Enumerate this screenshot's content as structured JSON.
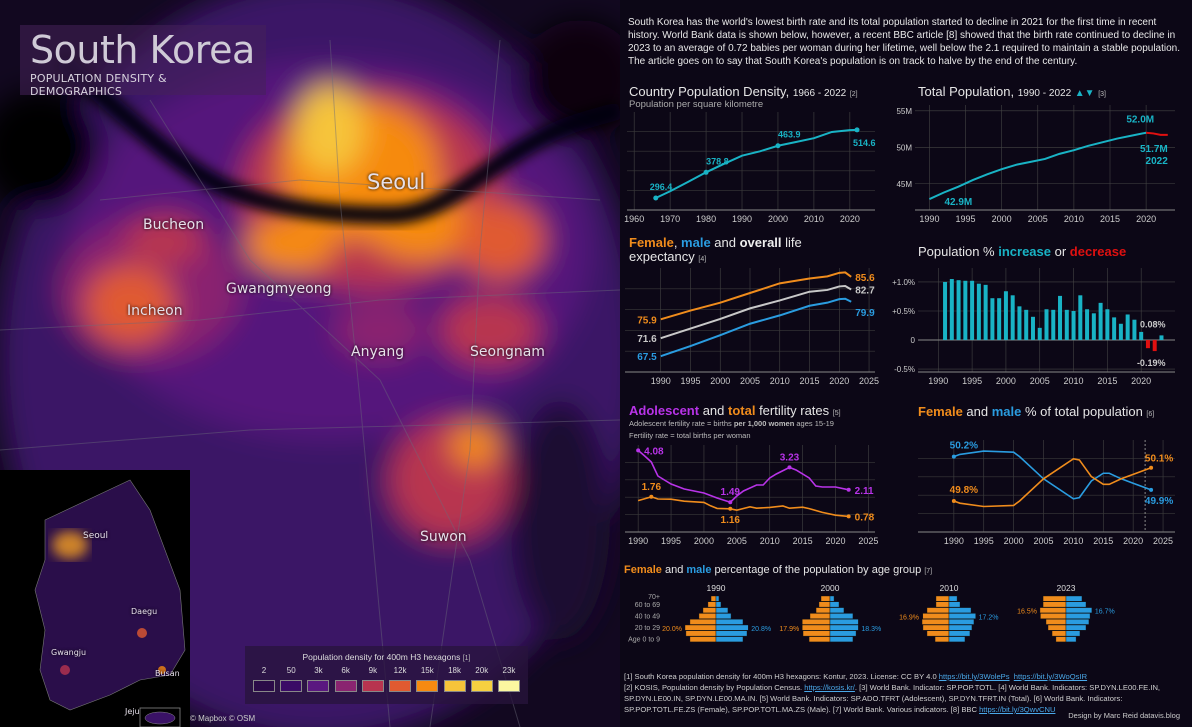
{
  "header": {
    "title": "South Korea",
    "subtitle": "POPULATION DENSITY  &  DEMOGRAPHICS"
  },
  "intro": "South Korea has the world's lowest birth rate and its total population started to decline in 2021 for the first time in recent history. World Bank data is shown below, however, a recent BBC article [8] showed that the birth rate continued to decline in 2023 to an average of 0.72 babies per woman during her lifetime, well below the 2.1 required to maintain a stable population. The article goes on to say that South Korea's population is on track to halve by the end of the century.",
  "map": {
    "cities": [
      "Seoul",
      "Bucheon",
      "Incheon",
      "Gwangmyeong",
      "Anyang",
      "Seongnam",
      "Suwon"
    ],
    "inset_cities": [
      "Seoul",
      "Daegu",
      "Gwangju",
      "Busan",
      "Jeju"
    ],
    "attribution": "© Mapbox © OSM",
    "legend": {
      "title": "Population density for 400m H3 hexagons",
      "ref": "[1]",
      "items": [
        {
          "label": "2",
          "color": "#2b0b48"
        },
        {
          "label": "50",
          "color": "#3a0b66"
        },
        {
          "label": "3k",
          "color": "#5a1880"
        },
        {
          "label": "6k",
          "color": "#8a2470"
        },
        {
          "label": "9k",
          "color": "#b8344f"
        },
        {
          "label": "12k",
          "color": "#e05a30"
        },
        {
          "label": "15k",
          "color": "#f68a10"
        },
        {
          "label": "18k",
          "color": "#f6c43a"
        },
        {
          "label": "20k",
          "color": "#f6d040"
        },
        {
          "label": "23k",
          "color": "#fbf7a0"
        }
      ]
    }
  },
  "colors": {
    "female": "#f08c1c",
    "male": "#2a9ce0",
    "overall": "#c8c8c8",
    "increase": "#19b3c5",
    "decrease": "#e01010",
    "adolescent": "#b833e8",
    "total": "#f08c1c",
    "line": "#19b3c5"
  },
  "chart_titles": {
    "density": {
      "title": "Country Population Density,",
      "years": "1966 - 2022",
      "ref": "[2]",
      "subtitle": "Population per square kilometre"
    },
    "population": {
      "title": "Total Population,",
      "years": "1990 - 2022",
      "arrows": "▲▼",
      "ref": "[3]"
    },
    "life": {
      "female": "Female",
      "sep1": ", ",
      "male": "male",
      "sep2": " and ",
      "overall": "overall",
      "rest": " life expectancy",
      "ref": "[4]"
    },
    "growth": {
      "pre": "Population % ",
      "increase": "increase",
      "mid": " or ",
      "decrease": "decrease"
    },
    "fertility": {
      "adolescent": "Adolescent",
      "mid": " and ",
      "total": "total",
      "rest": " fertility rates",
      "ref": "[5]",
      "note1_pre": "Adolescent fertility rate = births ",
      "note1_bold": "per 1,000 women",
      "note1_post": " ages 15-19",
      "note2": "Fertility rate = total births per woman"
    },
    "sex": {
      "female": "Female",
      "mid": " and ",
      "male": "male",
      "rest": " % of total population",
      "ref": "[6]"
    },
    "pyramid": {
      "female": "Female",
      "mid": " and ",
      "male": "male",
      "rest": " percentage of the population by age group",
      "ref": "[7]"
    }
  },
  "chart_data": [
    {
      "id": "density",
      "type": "line",
      "ylim": [
        258,
        572
      ],
      "xlim": [
        1958,
        2027
      ],
      "xticks": [
        1960,
        1970,
        1980,
        1990,
        2000,
        2010,
        2020
      ],
      "x": [
        1966,
        1970,
        1975,
        1980,
        1985,
        1990,
        1995,
        2000,
        2005,
        2010,
        2015,
        2020,
        2022
      ],
      "values": [
        296.4,
        318,
        348,
        378.8,
        406,
        432,
        446,
        463.9,
        476,
        488,
        508,
        514,
        514.6
      ],
      "labels": [
        {
          "x": 1966,
          "text": "296.4"
        },
        {
          "x": 1980,
          "text": "378.8"
        },
        {
          "x": 2000,
          "text": "463.9"
        },
        {
          "x": 2022,
          "text": "514.6"
        }
      ]
    },
    {
      "id": "population",
      "type": "line",
      "ylim": [
        41.4,
        55.8
      ],
      "xlim": [
        1988,
        2024
      ],
      "xticks": [
        1990,
        1995,
        2000,
        2005,
        2010,
        2015,
        2020
      ],
      "yticks": [
        {
          "v": 45,
          "label": "45M"
        },
        {
          "v": 50,
          "label": "50M"
        },
        {
          "v": 55,
          "label": "55M"
        }
      ],
      "x": [
        1990,
        1992,
        1994,
        1996,
        1998,
        2000,
        2002,
        2004,
        2006,
        2008,
        2010,
        2012,
        2014,
        2016,
        2018,
        2020,
        2021,
        2022,
        2023
      ],
      "values": [
        42.9,
        43.8,
        44.6,
        45.5,
        46.3,
        47.0,
        47.6,
        48.0,
        48.4,
        49.1,
        49.6,
        50.2,
        50.7,
        51.2,
        51.6,
        52.0,
        51.9,
        51.7,
        51.7
      ],
      "labels": [
        "42.9M",
        "52.0M",
        "51.7M",
        "2022"
      ]
    },
    {
      "id": "life",
      "type": "line",
      "ylim": [
        63.9,
        87.6
      ],
      "xlim": [
        1984,
        2026
      ],
      "xticks": [
        1990,
        1995,
        2000,
        2005,
        2010,
        2015,
        2020,
        2025
      ],
      "x": [
        1990,
        1995,
        2000,
        2005,
        2010,
        2015,
        2018,
        2020,
        2021,
        2022
      ],
      "series": [
        {
          "name": "Female",
          "values": [
            75.9,
            77.9,
            79.7,
            81.9,
            84.1,
            85.2,
            85.7,
            86.5,
            86.6,
            85.6
          ],
          "label_start": "75.9",
          "label_end": "85.6"
        },
        {
          "name": "Overall",
          "values": [
            71.6,
            73.8,
            76.0,
            78.4,
            80.2,
            82.2,
            82.6,
            83.4,
            83.5,
            82.7
          ],
          "label_start": "71.6",
          "label_end": "82.7"
        },
        {
          "name": "Male",
          "values": [
            67.5,
            69.8,
            72.3,
            74.9,
            76.8,
            79.0,
            79.7,
            80.5,
            80.6,
            79.9
          ],
          "label_start": "67.5",
          "label_end": "79.9"
        }
      ]
    },
    {
      "id": "growth",
      "type": "bar",
      "ylim": [
        -0.55,
        1.24
      ],
      "xlim": [
        1987,
        2025
      ],
      "xticks": [
        1990,
        1995,
        2000,
        2005,
        2010,
        2015,
        2020
      ],
      "yticks": [
        {
          "v": 1,
          "label": "+1.0%"
        },
        {
          "v": 0.5,
          "label": "+0.5%"
        },
        {
          "v": 0,
          "label": "0"
        },
        {
          "v": -0.5,
          "label": "-0.5%"
        }
      ],
      "x": [
        1991,
        1992,
        1993,
        1994,
        1995,
        1996,
        1997,
        1998,
        1999,
        2000,
        2001,
        2002,
        2003,
        2004,
        2005,
        2006,
        2007,
        2008,
        2009,
        2010,
        2011,
        2012,
        2013,
        2014,
        2015,
        2016,
        2017,
        2018,
        2019,
        2020,
        2021,
        2022,
        2023
      ],
      "values": [
        1.0,
        1.05,
        1.03,
        1.02,
        1.02,
        0.97,
        0.95,
        0.72,
        0.72,
        0.84,
        0.77,
        0.58,
        0.52,
        0.4,
        0.21,
        0.53,
        0.52,
        0.76,
        0.52,
        0.5,
        0.77,
        0.53,
        0.46,
        0.64,
        0.53,
        0.39,
        0.28,
        0.44,
        0.35,
        0.14,
        -0.14,
        -0.19,
        0.08
      ],
      "labels": [
        "0.08%",
        "-0.19%"
      ]
    },
    {
      "id": "fertility",
      "type": "line",
      "ylim": [
        0,
        4.35
      ],
      "xlim": [
        1988,
        2026
      ],
      "xticks": [
        1990,
        1995,
        2000,
        2005,
        2010,
        2015,
        2020,
        2025
      ],
      "series": [
        {
          "name": "Adolescent",
          "x": [
            1990,
            1991,
            1992,
            1993,
            1995,
            1997,
            2000,
            2002,
            2004,
            2005,
            2006,
            2008,
            2009,
            2010,
            2011,
            2013,
            2014,
            2016,
            2017,
            2018,
            2020,
            2022
          ],
          "values": [
            4.08,
            3.8,
            3.5,
            2.8,
            2.4,
            2.15,
            1.95,
            1.7,
            1.49,
            1.8,
            2.05,
            2.35,
            2.35,
            2.7,
            2.9,
            3.23,
            3.1,
            2.7,
            2.3,
            2.25,
            2.25,
            2.11
          ],
          "labels": [
            {
              "x": 1990,
              "text": "4.08"
            },
            {
              "x": 2004,
              "text": "1.49"
            },
            {
              "x": 2013,
              "text": "3.23"
            },
            {
              "x": 2022,
              "text": "2.11"
            }
          ]
        },
        {
          "name": "Total",
          "x": [
            1990,
            1992,
            1993,
            1995,
            1997,
            2000,
            2001,
            2002,
            2004,
            2005,
            2007,
            2008,
            2010,
            2012,
            2013,
            2015,
            2016,
            2018,
            2020,
            2022
          ],
          "values": [
            1.57,
            1.76,
            1.65,
            1.64,
            1.54,
            1.48,
            1.31,
            1.18,
            1.16,
            1.09,
            1.26,
            1.19,
            1.23,
            1.3,
            1.19,
            1.24,
            1.17,
            0.98,
            0.84,
            0.78
          ],
          "labels": [
            {
              "x": 1992,
              "text": "1.76"
            },
            {
              "x": 2004,
              "text": "1.16"
            },
            {
              "x": 2022,
              "text": "0.78"
            }
          ]
        }
      ]
    },
    {
      "id": "sex",
      "type": "line",
      "ylim": [
        49.52,
        50.35
      ],
      "xlim": [
        1984,
        2027
      ],
      "xticks": [
        1990,
        1995,
        2000,
        2005,
        2010,
        2015,
        2020,
        2025
      ],
      "x": [
        1990,
        1991,
        1995,
        2000,
        2001,
        2005,
        2010,
        2011,
        2013,
        2015,
        2016,
        2018,
        2020,
        2023
      ],
      "series": [
        {
          "name": "Male",
          "values": [
            50.2,
            50.22,
            50.25,
            50.24,
            50.2,
            50.0,
            49.82,
            49.83,
            49.98,
            50.05,
            50.05,
            50.0,
            49.96,
            49.9
          ],
          "label_start": "50.2%",
          "label_end": "49.9%"
        },
        {
          "name": "Female",
          "values": [
            49.8,
            49.78,
            49.75,
            49.76,
            49.8,
            50.0,
            50.18,
            50.17,
            50.02,
            49.95,
            49.95,
            50.0,
            50.04,
            50.1
          ],
          "label_start": "49.8%",
          "label_end": "50.1%"
        }
      ]
    },
    {
      "id": "pyramid",
      "type": "bar",
      "age_groups": [
        "70+",
        "60 to 69",
        "50 to 59",
        "40 to 49",
        "30 to 39",
        "20 to 29",
        "10 to 19",
        "Age 0 to 9"
      ],
      "age_labels_shown": [
        "70+",
        "60 to 69",
        "40 to 49",
        "20 to 29",
        "Age 0 to 9"
      ],
      "years": [
        {
          "year": "1990",
          "female": [
            3.2,
            5.2,
            8.4,
            11,
            16.8,
            20,
            19.4,
            16.8
          ],
          "male": [
            1.9,
            3.2,
            7.7,
            9.7,
            17.4,
            20.8,
            20,
            17.4
          ],
          "label_f": "20.0%",
          "label_m": "20.8%"
        },
        {
          "year": "2000",
          "female": [
            5.8,
            7.1,
            9,
            12.9,
            17.9,
            17.9,
            17.4,
            13.5
          ],
          "male": [
            2.6,
            5.8,
            9,
            14.8,
            18.3,
            18.3,
            16.8,
            14.8
          ],
          "label_f": "17.9%",
          "label_m": "18.3%"
        },
        {
          "year": "2010",
          "female": [
            8.4,
            8.4,
            14.2,
            16.9,
            17.4,
            16.8,
            14.2,
            9
          ],
          "male": [
            5.2,
            7.1,
            14.2,
            17.2,
            16.1,
            14.8,
            13.5,
            10.3
          ],
          "label_f": "16.9%",
          "label_m": "17.2%"
        },
        {
          "year": "2023",
          "female": [
            14.8,
            14.8,
            16.8,
            16.5,
            12.9,
            11.6,
            9,
            6.5
          ],
          "male": [
            10.3,
            12.9,
            16.7,
            15.5,
            14.8,
            12.9,
            9,
            6.5
          ],
          "label_f": "16.5%",
          "label_m": "16.7%"
        }
      ]
    }
  ],
  "footnotes": {
    "f1": "[1] South Korea population density for 400m H3 hexagons: Kontur, 2023. License: CC BY 4.0 ",
    "l1a": "https://bit.ly/3WolePs",
    "l1b": "https://bit.ly/3WoQsIR",
    "f2": "[2] KOSIS, Population density by Population Census. ",
    "l2": "https://kosis.kr/",
    "f3": ".  [3] World Bank. Indicator: SP.POP.TOTL.  [4] World Bank. Indicators: SP.DYN.LE00.FE.IN, SP.DYN.LE00.IN, SP.DYN.LE00.MA.IN.  [5] World Bank. Indicators: SP.ADO.TFRT (Adolescent), SP.DYN.TFRT.IN (Total).  [6] World Bank. Indicators: SP.POP.TOTL.FE.ZS (Female), SP.POP.TOTL.MA.ZS (Male).  [7] World Bank. Various indicators.  [8] BBC ",
    "l8": "https://bit.ly/3QwvCNU",
    "credit": "Design by Marc Reid  datavis.blog"
  }
}
